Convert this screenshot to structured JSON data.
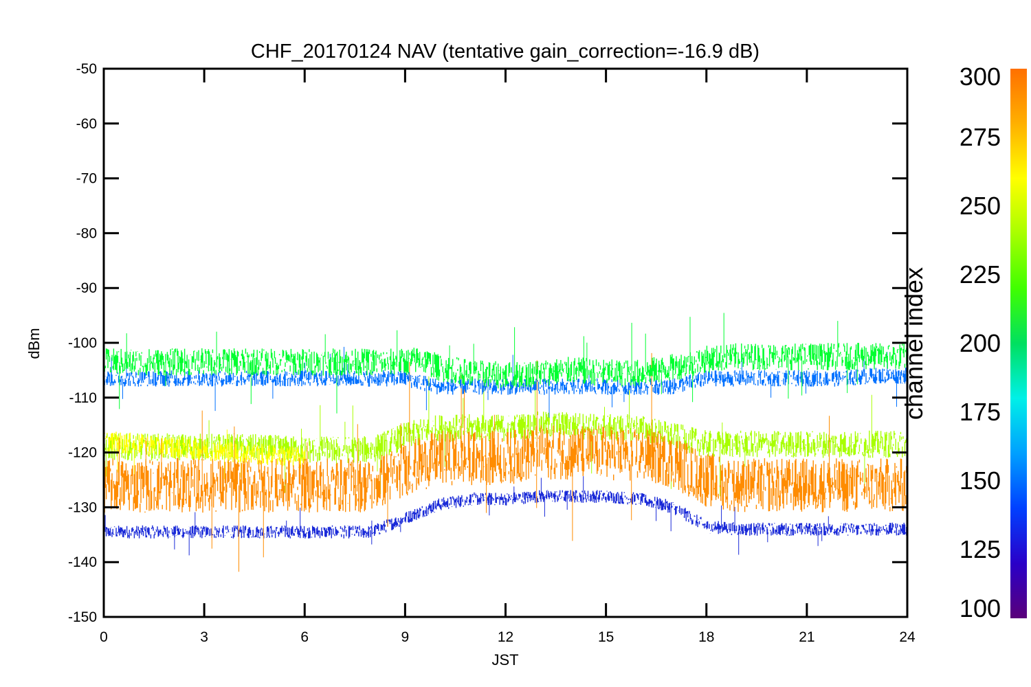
{
  "chart_data": {
    "type": "scatter",
    "title": "CHF_20170124 NAV (tentative gain_correction=-16.9 dB)",
    "xlabel": "JST",
    "ylabel": "dBm",
    "xlim": [
      0,
      24
    ],
    "ylim": [
      -150,
      -50
    ],
    "x_ticks": [
      "0",
      "3",
      "6",
      "9",
      "12",
      "15",
      "18",
      "21",
      "24"
    ],
    "y_ticks": [
      "-50",
      "-60",
      "-70",
      "-80",
      "-90",
      "-100",
      "-110",
      "-120",
      "-130",
      "-140",
      "-150"
    ],
    "grid": false,
    "colorbar": {
      "label": "channel index",
      "range": [
        100,
        300
      ],
      "ticks": [
        "300",
        "275",
        "250",
        "225",
        "200",
        "175",
        "150",
        "125",
        "100"
      ],
      "colors": [
        "#5a007a",
        "#2a00c8",
        "#0040ff",
        "#00a0ff",
        "#00f0e8",
        "#00e060",
        "#40ff00",
        "#a8ff00",
        "#ffff00",
        "#ffb000",
        "#ff7000"
      ]
    },
    "series": [
      {
        "channel": 225,
        "color": "#00ff30",
        "x": [
          0,
          2,
          4,
          6,
          8,
          9,
          9.5,
          10,
          11,
          12,
          13,
          14,
          15,
          16,
          17,
          18,
          19,
          20,
          21,
          22,
          23,
          24
        ],
        "y": [
          -103.5,
          -103.5,
          -103.5,
          -103.5,
          -103.5,
          -103.5,
          -103,
          -104.5,
          -105.5,
          -106,
          -105.5,
          -105,
          -105.5,
          -105.5,
          -104.5,
          -103,
          -102.5,
          -102.5,
          -102.5,
          -102.5,
          -102.5,
          -102.5
        ],
        "spread": 2.5
      },
      {
        "channel": 160,
        "color": "#0070ff",
        "x": [
          0,
          2,
          4,
          6,
          8,
          9,
          10,
          11,
          12,
          13,
          14,
          15,
          16,
          17,
          18,
          19,
          20,
          21,
          22,
          23,
          24
        ],
        "y": [
          -106.5,
          -106.5,
          -106.5,
          -106.5,
          -106.5,
          -106.5,
          -108,
          -108,
          -108,
          -108,
          -108,
          -108,
          -108,
          -108,
          -106.5,
          -106.5,
          -106.5,
          -106.5,
          -106.5,
          -106,
          -106
        ],
        "spread": 1.5
      },
      {
        "channel": 260,
        "color": "#a8ff00",
        "x": [
          0,
          2,
          4,
          6,
          8,
          9,
          10,
          11,
          12,
          13,
          14,
          15,
          16,
          17,
          18,
          19,
          20,
          21,
          22,
          23,
          24
        ],
        "y": [
          -119,
          -119,
          -119,
          -119.5,
          -119.5,
          -117,
          -115.5,
          -115.5,
          -115.5,
          -115,
          -115,
          -115.5,
          -115.5,
          -117,
          -118.5,
          -118.5,
          -118.5,
          -118.5,
          -118.5,
          -118.5,
          -118.5
        ],
        "spread": 2.5
      },
      {
        "channel": 280,
        "color": "#ffff00",
        "x": [
          0,
          1,
          2,
          3,
          4,
          5,
          6
        ],
        "y": [
          -118,
          -118.5,
          -119,
          -119.5,
          -120,
          -120.5,
          -121
        ],
        "spread": 2
      },
      {
        "channel": 290,
        "color": "#ff8c00",
        "x": [
          0,
          2,
          4,
          6,
          8,
          9,
          10,
          11,
          12,
          13,
          14,
          15,
          16,
          17,
          18,
          19,
          20,
          21,
          22,
          23,
          24
        ],
        "y": [
          -126,
          -126,
          -126,
          -126,
          -126,
          -123,
          -121,
          -121,
          -121,
          -120,
          -120,
          -120,
          -120.5,
          -121.5,
          -125,
          -126,
          -126,
          -126,
          -126,
          -126,
          -126
        ],
        "spread": 5
      },
      {
        "channel": 130,
        "color": "#1a2ad8",
        "x": [
          0,
          2,
          4,
          6,
          8,
          9,
          10,
          11,
          12,
          13,
          14,
          15,
          16,
          17,
          18,
          19,
          20,
          21,
          22,
          23,
          24
        ],
        "y": [
          -134.5,
          -134.5,
          -134.5,
          -134.5,
          -134.5,
          -132,
          -129.5,
          -128.5,
          -128.5,
          -128,
          -128,
          -128,
          -128.5,
          -130,
          -133.5,
          -134,
          -134,
          -134,
          -134,
          -134,
          -134
        ],
        "spread": 1.2
      }
    ]
  }
}
